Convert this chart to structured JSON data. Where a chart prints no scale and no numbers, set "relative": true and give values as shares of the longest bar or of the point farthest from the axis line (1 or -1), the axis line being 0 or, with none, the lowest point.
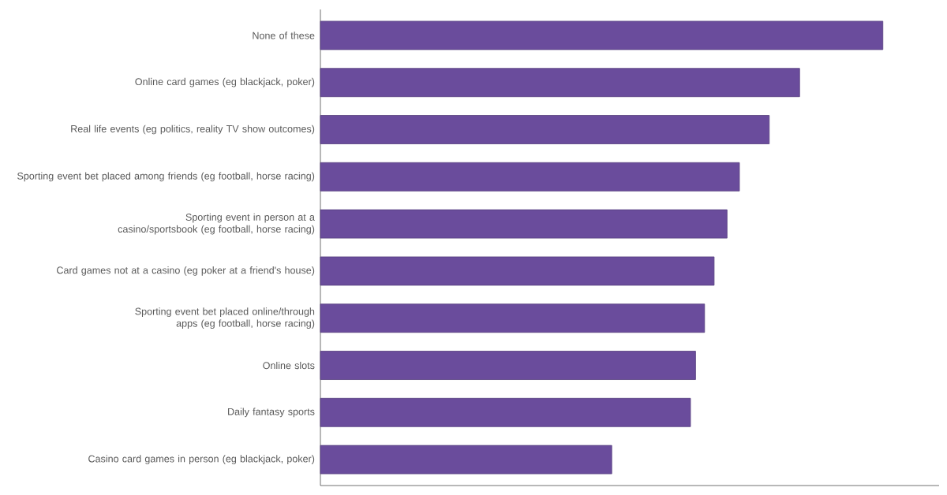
{
  "chart_data": {
    "type": "bar",
    "orientation": "horizontal",
    "relative": true,
    "color": "#6a4c9c",
    "categories": [
      "None of these",
      "Online card games (eg blackjack, poker)",
      "Real life events (eg politics, reality TV show outcomes)",
      "Sporting event bet placed among friends (eg football, horse racing)",
      "Sporting event in person at a casino/sportsbook (eg football, horse racing)",
      "Card games not at a casino (eg poker at a friend's house)",
      "Sporting event bet placed online/through apps (eg football, horse racing)",
      "Online slots",
      "Daily fantasy sports",
      "Casino card games in person (eg blackjack, poker)"
    ],
    "values": [
      1,
      0.852,
      0.798,
      0.745,
      0.723,
      0.7,
      0.683,
      0.667,
      0.658,
      0.518
    ]
  }
}
